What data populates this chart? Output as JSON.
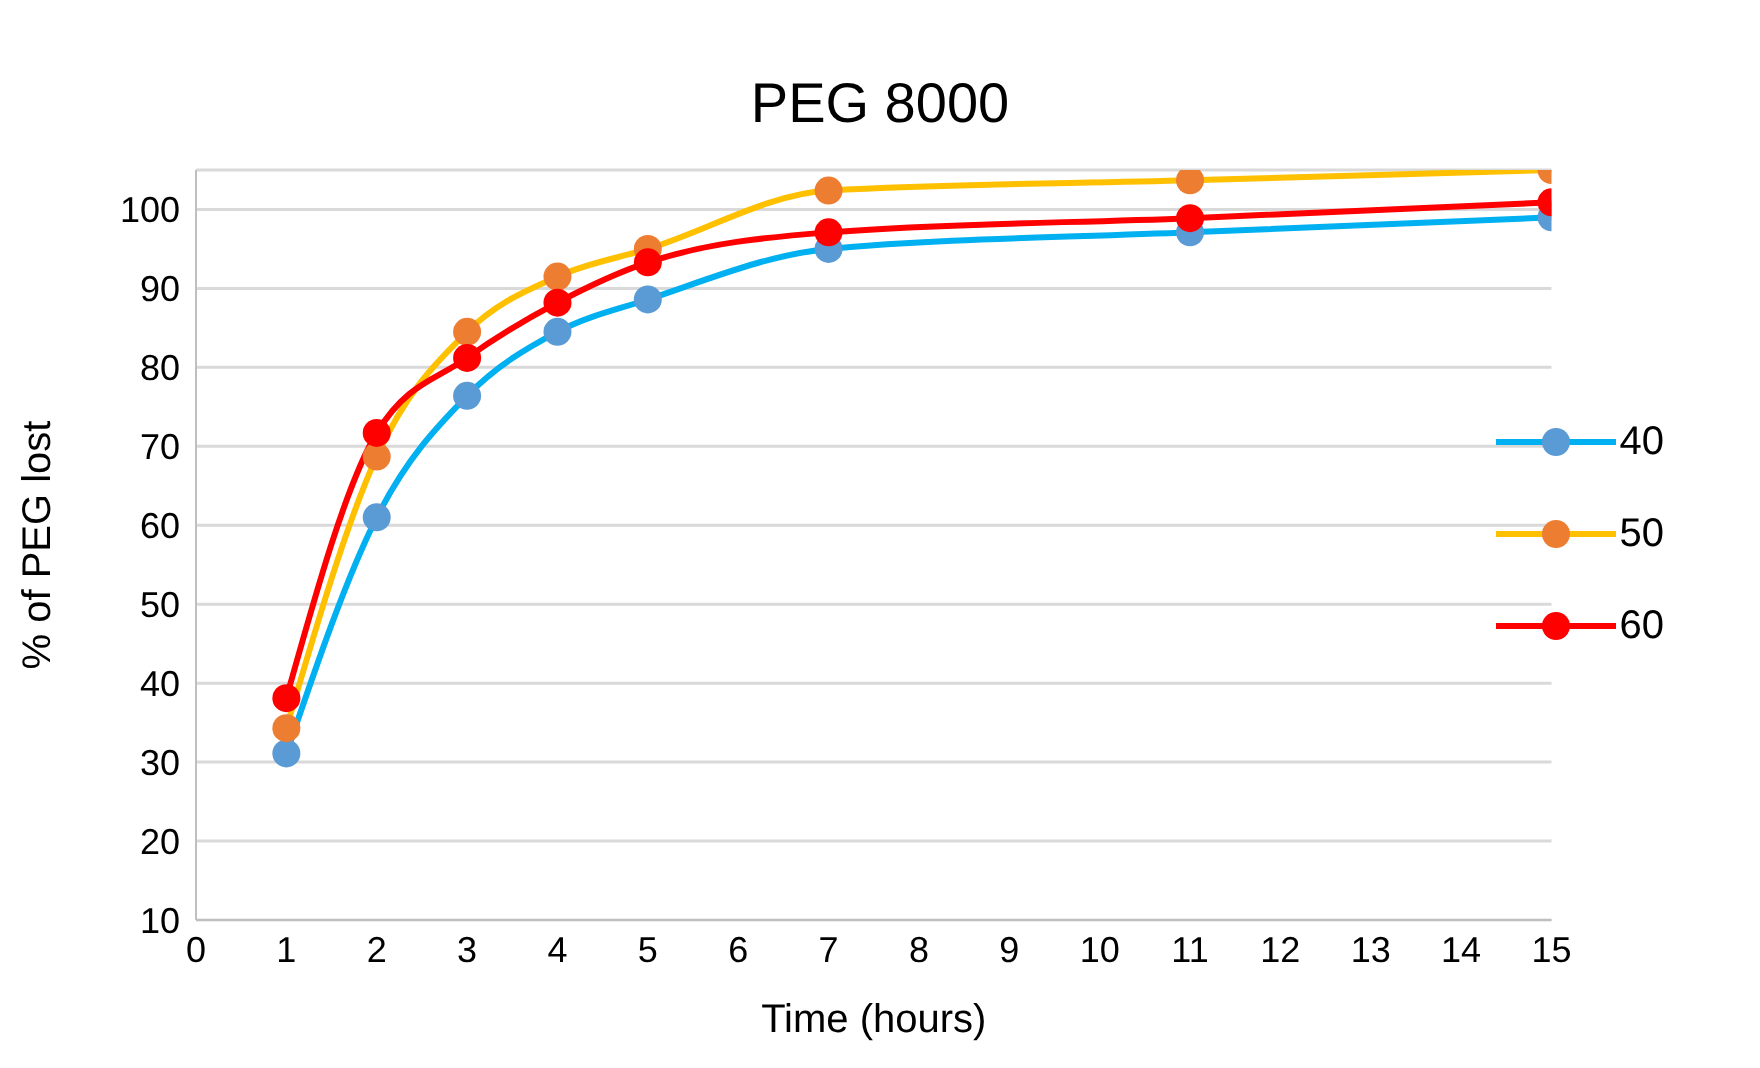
{
  "chart_data": {
    "type": "line",
    "title": "PEG 8000",
    "xlabel": "Time (hours)",
    "ylabel": "% of PEG lost",
    "x": [
      1,
      2,
      3,
      4,
      5,
      7,
      11,
      15
    ],
    "series": [
      {
        "name": "40",
        "color": "#00b0f0",
        "colors": [
          "#5b9bd5",
          "#5b9bd5",
          "#5b9bd5",
          "#5b9bd5",
          "#5b9bd5",
          "#5b9bd5",
          "#5b9bd5",
          "#5b9bd5"
        ],
        "values": [
          31.1,
          61.0,
          76.4,
          84.5,
          88.6,
          95.0,
          97.1,
          99.0
        ]
      },
      {
        "name": "50",
        "color": "#ffc000",
        "colors": [
          "#ed7d31",
          "#ed7d31",
          "#ed7d31",
          "#ed7d31",
          "#ed7d31",
          "#ed7d31",
          "#ed7d31",
          "#ed7d31"
        ],
        "values": [
          34.3,
          68.7,
          84.5,
          91.5,
          95.0,
          102.4,
          103.7,
          105
        ]
      },
      {
        "name": "60",
        "color": "#ff0000",
        "colors": [
          "#ff0000",
          "#ff0000",
          "#ff0000",
          "#ff0000",
          "#ff0000",
          "#ff0000",
          "#ff0000",
          "#ff0000"
        ],
        "values": [
          38.1,
          71.7,
          81.2,
          88.2,
          93.3,
          97.1,
          98.9,
          100.9
        ]
      }
    ],
    "xlim": [
      0,
      15
    ],
    "xticks": [
      0,
      1,
      2,
      3,
      4,
      5,
      6,
      7,
      8,
      9,
      10,
      11,
      12,
      13,
      14,
      15
    ],
    "ylim": [
      10,
      105
    ],
    "yticks": [
      10,
      20,
      30,
      40,
      50,
      60,
      70,
      80,
      90,
      100
    ],
    "grid": "y",
    "legend": "right",
    "marker": "circle",
    "line_style": "solid"
  }
}
